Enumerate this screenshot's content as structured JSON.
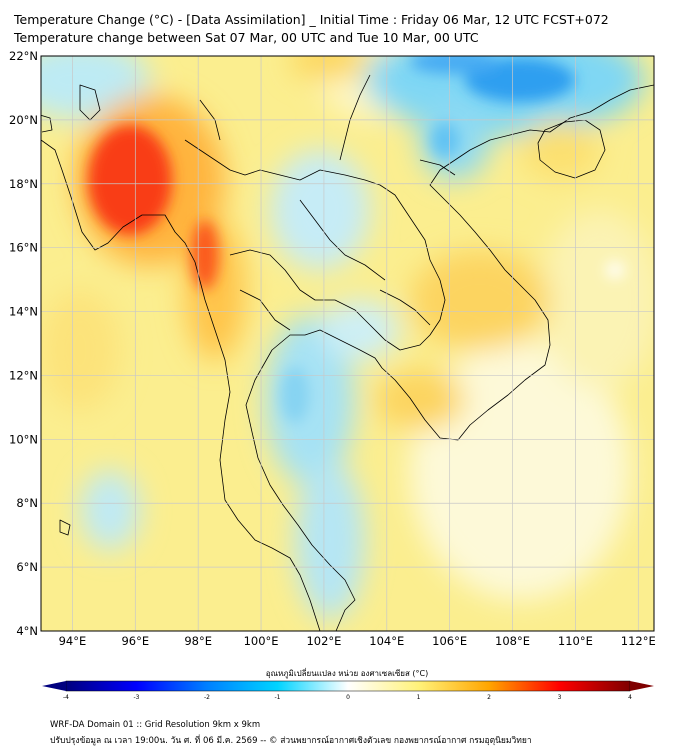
{
  "header": {
    "title_line1": "Temperature Change (°C) - [Data Assimilation] _ Initial Time : Friday 06 Mar, 12 UTC FCST+072",
    "title_line2": "Temperature change between Sat 07 Mar, 00 UTC and Tue 10 Mar, 00 UTC"
  },
  "map": {
    "lat_labels": [
      "22°N",
      "20°N",
      "18°N",
      "16°N",
      "14°N",
      "12°N",
      "10°N",
      "8°N",
      "6°N",
      "4°N"
    ],
    "lon_labels": [
      "94°E",
      "96°E",
      "98°E",
      "100°E",
      "102°E",
      "104°E",
      "106°E",
      "108°E",
      "110°E",
      "112°E"
    ],
    "colors": {
      "land_border": "#000000",
      "gridline": "#c8c8c8"
    }
  },
  "colorbar": {
    "title": "อุณหภูมิเปลี่ยนแปลง หน่วย องศาเซลเซียส (°C)",
    "ticks": [
      "-4",
      "-3",
      "-2",
      "-1",
      "0",
      "1",
      "2",
      "3",
      "4"
    ],
    "colors": [
      "#00007f",
      "#0000ff",
      "#0080ff",
      "#00d4ff",
      "#ffffff",
      "#fff27a",
      "#ffa500",
      "#ff0000",
      "#7f0000"
    ]
  },
  "footer": {
    "line1": "WRF-DA Domain 01 :: Grid Resolution 9km x 9km",
    "line2": "ปรับปรุงข้อมูล ณ เวลา 19:00น. วัน ศ. ที่ 06 มี.ค. 2569 -- © ส่วนพยากรณ์อากาศเชิงตัวเลข กองพยากรณ์อากาศ กรมอุตุนิยมวิทยา"
  }
}
